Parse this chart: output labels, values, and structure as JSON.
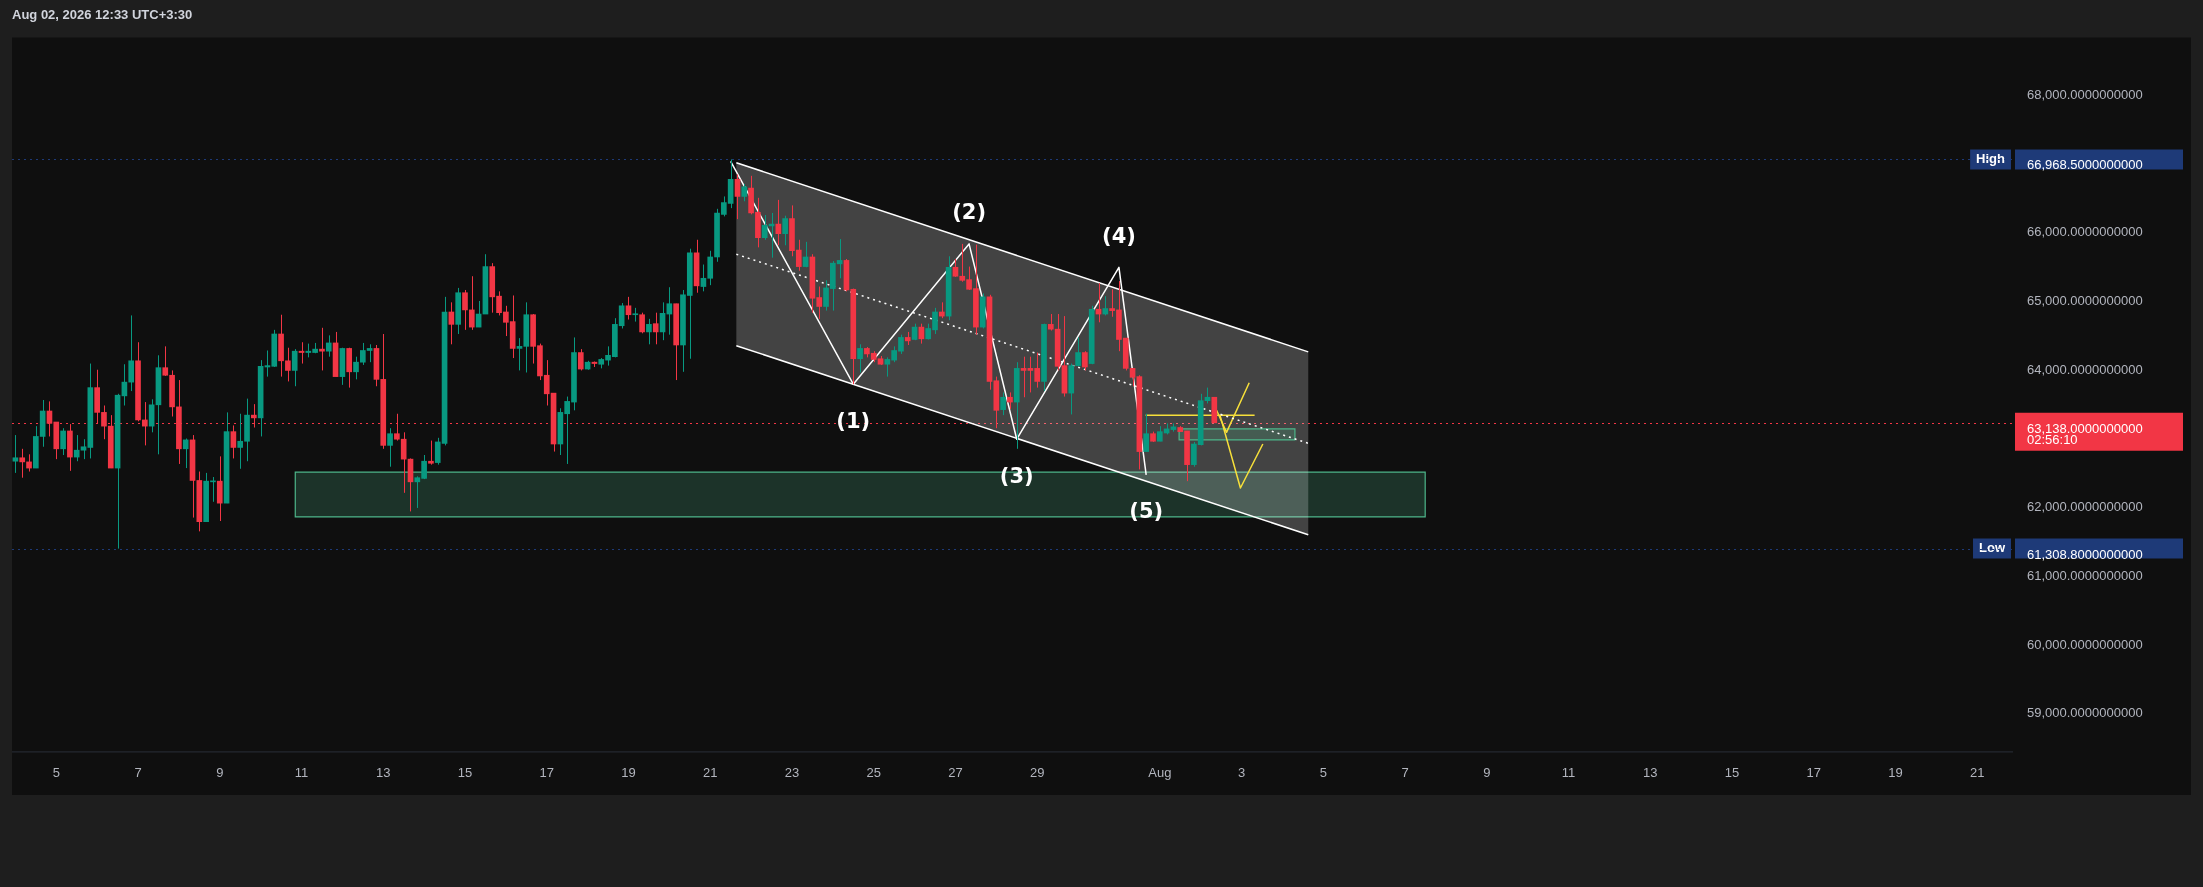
{
  "chart_data": {
    "type": "candlestick",
    "title": "Aug 02, 2026 12:33 UTC+3:30",
    "x": [
      "2026-07-04T00:00",
      "2026-07-04T04:00",
      "2026-07-04T08:00",
      "2026-07-04T12:00",
      "2026-07-04T16:00",
      "2026-07-04T20:00",
      "2026-07-05T00:00",
      "2026-07-05T04:00",
      "2026-07-05T08:00",
      "2026-07-05T12:00",
      "2026-07-05T16:00",
      "2026-07-05T20:00",
      "2026-07-06T00:00",
      "2026-07-06T04:00",
      "2026-07-06T08:00",
      "2026-07-06T12:00",
      "2026-07-06T16:00",
      "2026-07-06T20:00",
      "2026-07-07T00:00",
      "2026-07-07T04:00",
      "2026-07-07T08:00",
      "2026-07-07T12:00",
      "2026-07-07T16:00",
      "2026-07-07T20:00",
      "2026-07-08T00:00",
      "2026-07-08T04:00",
      "2026-07-08T08:00",
      "2026-07-08T12:00",
      "2026-07-08T16:00",
      "2026-07-08T20:00",
      "2026-07-09T00:00",
      "2026-07-09T04:00",
      "2026-07-09T08:00",
      "2026-07-09T12:00",
      "2026-07-09T16:00",
      "2026-07-09T20:00",
      "2026-07-10T00:00",
      "2026-07-10T04:00",
      "2026-07-10T08:00",
      "2026-07-10T12:00",
      "2026-07-10T16:00",
      "2026-07-10T20:00",
      "2026-07-11T00:00",
      "2026-07-11T04:00",
      "2026-07-11T08:00",
      "2026-07-11T12:00",
      "2026-07-11T16:00",
      "2026-07-11T20:00",
      "2026-07-12T00:00",
      "2026-07-12T04:00",
      "2026-07-12T08:00",
      "2026-07-12T12:00",
      "2026-07-12T16:00",
      "2026-07-12T20:00",
      "2026-07-13T00:00",
      "2026-07-13T04:00",
      "2026-07-13T08:00",
      "2026-07-13T12:00",
      "2026-07-13T16:00",
      "2026-07-13T20:00",
      "2026-07-14T00:00",
      "2026-07-14T04:00",
      "2026-07-14T08:00",
      "2026-07-14T12:00",
      "2026-07-14T16:00",
      "2026-07-14T20:00",
      "2026-07-15T00:00",
      "2026-07-15T04:00",
      "2026-07-15T08:00",
      "2026-07-15T12:00",
      "2026-07-15T16:00",
      "2026-07-15T20:00",
      "2026-07-16T00:00",
      "2026-07-16T04:00",
      "2026-07-16T08:00",
      "2026-07-16T12:00",
      "2026-07-16T16:00",
      "2026-07-16T20:00",
      "2026-07-17T00:00",
      "2026-07-17T04:00",
      "2026-07-17T08:00",
      "2026-07-17T12:00",
      "2026-07-17T16:00",
      "2026-07-17T20:00",
      "2026-07-18T00:00",
      "2026-07-18T04:00",
      "2026-07-18T08:00",
      "2026-07-18T12:00",
      "2026-07-18T16:00",
      "2026-07-18T20:00",
      "2026-07-19T00:00",
      "2026-07-19T04:00",
      "2026-07-19T08:00",
      "2026-07-19T12:00",
      "2026-07-19T16:00",
      "2026-07-19T20:00",
      "2026-07-20T00:00",
      "2026-07-20T04:00",
      "2026-07-20T08:00",
      "2026-07-20T12:00",
      "2026-07-20T16:00",
      "2026-07-20T20:00",
      "2026-07-21T00:00",
      "2026-07-21T04:00",
      "2026-07-21T08:00",
      "2026-07-21T12:00",
      "2026-07-21T16:00",
      "2026-07-21T20:00",
      "2026-07-22T00:00",
      "2026-07-22T04:00",
      "2026-07-22T08:00",
      "2026-07-22T12:00",
      "2026-07-22T16:00",
      "2026-07-22T20:00",
      "2026-07-23T00:00",
      "2026-07-23T04:00",
      "2026-07-23T08:00",
      "2026-07-23T12:00",
      "2026-07-23T16:00",
      "2026-07-23T20:00",
      "2026-07-24T00:00",
      "2026-07-24T04:00",
      "2026-07-24T08:00",
      "2026-07-24T12:00",
      "2026-07-24T16:00",
      "2026-07-24T20:00",
      "2026-07-25T00:00",
      "2026-07-25T04:00",
      "2026-07-25T08:00",
      "2026-07-25T12:00",
      "2026-07-25T16:00",
      "2026-07-25T20:00",
      "2026-07-26T00:00",
      "2026-07-26T04:00",
      "2026-07-26T08:00",
      "2026-07-26T12:00",
      "2026-07-26T16:00",
      "2026-07-26T20:00",
      "2026-07-27T00:00",
      "2026-07-27T04:00",
      "2026-07-27T08:00",
      "2026-07-27T12:00",
      "2026-07-27T16:00",
      "2026-07-27T20:00",
      "2026-07-28T00:00",
      "2026-07-28T04:00",
      "2026-07-28T08:00",
      "2026-07-28T12:00",
      "2026-07-28T16:00",
      "2026-07-28T20:00",
      "2026-07-29T00:00",
      "2026-07-29T04:00",
      "2026-07-29T08:00",
      "2026-07-29T12:00",
      "2026-07-29T16:00",
      "2026-07-29T20:00",
      "2026-07-30T00:00",
      "2026-07-30T04:00",
      "2026-07-30T08:00",
      "2026-07-30T12:00",
      "2026-07-30T16:00",
      "2026-07-30T20:00",
      "2026-07-31T00:00",
      "2026-07-31T04:00",
      "2026-07-31T08:00",
      "2026-07-31T12:00",
      "2026-07-31T16:00",
      "2026-07-31T20:00",
      "2026-08-01T00:00",
      "2026-08-01T04:00",
      "2026-08-01T08:00",
      "2026-08-01T12:00",
      "2026-08-01T16:00",
      "2026-08-01T20:00",
      "2026-08-02T00:00",
      "2026-08-02T04:00",
      "2026-08-02T08:00"
    ],
    "ohlc": [
      [
        62580,
        62960,
        62410,
        62630
      ],
      [
        62630,
        62760,
        62340,
        62570
      ],
      [
        62570,
        62680,
        62430,
        62480
      ],
      [
        62480,
        63090,
        62480,
        62940
      ],
      [
        62940,
        63470,
        62790,
        63310
      ],
      [
        63310,
        63450,
        62940,
        63130
      ],
      [
        63150,
        63150,
        62610,
        62760
      ],
      [
        62760,
        63060,
        62670,
        63020
      ],
      [
        63020,
        63120,
        62440,
        62640
      ],
      [
        62640,
        62960,
        62580,
        62740
      ],
      [
        62740,
        62900,
        62610,
        62790
      ],
      [
        62780,
        64000,
        62620,
        63650
      ],
      [
        63650,
        63910,
        63130,
        63290
      ],
      [
        63290,
        63390,
        62900,
        63090
      ],
      [
        63090,
        63250,
        62480,
        62480
      ],
      [
        62480,
        63560,
        61308.8,
        63540
      ],
      [
        63530,
        63990,
        63390,
        63730
      ],
      [
        63730,
        64700,
        63600,
        64040
      ],
      [
        64040,
        64310,
        63160,
        63180
      ],
      [
        63180,
        63440,
        62810,
        63090
      ],
      [
        63090,
        63480,
        63000,
        63400
      ],
      [
        63400,
        64120,
        62680,
        63940
      ],
      [
        63940,
        64250,
        63820,
        63830
      ],
      [
        63830,
        63900,
        63230,
        63370
      ],
      [
        63370,
        63760,
        62540,
        62760
      ],
      [
        62760,
        62910,
        62480,
        62890
      ],
      [
        62890,
        62960,
        61760,
        62300
      ],
      [
        62300,
        62430,
        61560,
        61700
      ],
      [
        61700,
        62410,
        61700,
        62290
      ],
      [
        62280,
        62350,
        61990,
        62290
      ],
      [
        62290,
        62650,
        61710,
        61970
      ],
      [
        61970,
        63290,
        61970,
        63010
      ],
      [
        63010,
        63100,
        62620,
        62780
      ],
      [
        62780,
        63270,
        62470,
        62870
      ],
      [
        62870,
        63490,
        62580,
        63250
      ],
      [
        63250,
        63410,
        63070,
        63210
      ],
      [
        63210,
        64050,
        62940,
        63960
      ],
      [
        63950,
        64190,
        63810,
        63970
      ],
      [
        63960,
        64490,
        63950,
        64430
      ],
      [
        64430,
        64710,
        63810,
        64040
      ],
      [
        64040,
        64230,
        63740,
        63900
      ],
      [
        63900,
        64210,
        63670,
        64180
      ],
      [
        64180,
        64310,
        64000,
        64160
      ],
      [
        64160,
        64290,
        64090,
        64180
      ],
      [
        64160,
        64300,
        64150,
        64210
      ],
      [
        64210,
        64520,
        63900,
        64180
      ],
      [
        64180,
        64410,
        64100,
        64300
      ],
      [
        64300,
        64460,
        63810,
        63810
      ],
      [
        63810,
        64230,
        63690,
        64220
      ],
      [
        64220,
        64230,
        63650,
        63880
      ],
      [
        63880,
        64100,
        63770,
        64020
      ],
      [
        64020,
        64300,
        63980,
        64190
      ],
      [
        64190,
        64280,
        64020,
        64220
      ],
      [
        64220,
        64270,
        63670,
        63770
      ],
      [
        63770,
        64430,
        62760,
        62810
      ],
      [
        62810,
        63060,
        62500,
        62980
      ],
      [
        62980,
        63270,
        62880,
        62900
      ],
      [
        62900,
        63000,
        62120,
        62610
      ],
      [
        62610,
        62620,
        61850,
        62280
      ],
      [
        62280,
        62360,
        61900,
        62340
      ],
      [
        62330,
        62670,
        62320,
        62580
      ],
      [
        62580,
        62880,
        62530,
        62550
      ],
      [
        62560,
        62920,
        62530,
        62860
      ],
      [
        62840,
        64970,
        62810,
        64750
      ],
      [
        64750,
        64890,
        64280,
        64570
      ],
      [
        64570,
        65100,
        64430,
        65030
      ],
      [
        65030,
        65070,
        64490,
        64780
      ],
      [
        64780,
        65270,
        64490,
        64530
      ],
      [
        64530,
        64910,
        64530,
        64720
      ],
      [
        64720,
        65590,
        64720,
        65410
      ],
      [
        65410,
        65460,
        64740,
        64970
      ],
      [
        64980,
        65050,
        64700,
        64740
      ],
      [
        64750,
        64840,
        64400,
        64600
      ],
      [
        64610,
        64990,
        64080,
        64220
      ],
      [
        64220,
        64370,
        63900,
        64250
      ],
      [
        64250,
        64890,
        63870,
        64710
      ],
      [
        64710,
        64720,
        64000,
        64250
      ],
      [
        64260,
        64290,
        63760,
        63820
      ],
      [
        63830,
        64050,
        63390,
        63560
      ],
      [
        63570,
        63570,
        62720,
        62830
      ],
      [
        62830,
        63350,
        62670,
        63290
      ],
      [
        63270,
        63520,
        62540,
        63450
      ],
      [
        63440,
        64380,
        63320,
        64160
      ],
      [
        64160,
        64210,
        63900,
        63920
      ],
      [
        63920,
        64040,
        63910,
        64020
      ],
      [
        64020,
        64030,
        63950,
        64000
      ],
      [
        63990,
        64080,
        63930,
        64060
      ],
      [
        64050,
        64250,
        63970,
        64120
      ],
      [
        64100,
        64660,
        64090,
        64570
      ],
      [
        64550,
        64880,
        64510,
        64840
      ],
      [
        64840,
        64970,
        64640,
        64710
      ],
      [
        64710,
        64810,
        64610,
        64720
      ],
      [
        64710,
        64740,
        64440,
        64460
      ],
      [
        64460,
        64650,
        64280,
        64570
      ],
      [
        64580,
        64740,
        64280,
        64460
      ],
      [
        64460,
        64890,
        64340,
        64730
      ],
      [
        64720,
        65110,
        64420,
        64870
      ],
      [
        64870,
        64870,
        63760,
        64270
      ],
      [
        64270,
        65070,
        63880,
        65000
      ],
      [
        64990,
        65670,
        64070,
        65610
      ],
      [
        65610,
        65800,
        65030,
        65130
      ],
      [
        65120,
        65440,
        65050,
        65240
      ],
      [
        65240,
        65640,
        65140,
        65550
      ],
      [
        65550,
        66250,
        65480,
        66190
      ],
      [
        66170,
        66430,
        66140,
        66340
      ],
      [
        66330,
        66968.5,
        66260,
        66680
      ],
      [
        66680,
        66750,
        66100,
        66430
      ],
      [
        66430,
        66610,
        66360,
        66570
      ],
      [
        66550,
        66730,
        66170,
        66190
      ],
      [
        66200,
        66410,
        65690,
        65830
      ],
      [
        65830,
        66160,
        65800,
        66010
      ],
      [
        66000,
        66190,
        65540,
        66030
      ],
      [
        66030,
        66380,
        65720,
        65890
      ],
      [
        65890,
        66150,
        65720,
        66110
      ],
      [
        66110,
        66300,
        65560,
        65640
      ],
      [
        65650,
        65800,
        65350,
        65410
      ],
      [
        65410,
        65770,
        65400,
        65550
      ],
      [
        65550,
        65590,
        64740,
        64950
      ],
      [
        64960,
        65120,
        64650,
        64830
      ],
      [
        64830,
        65210,
        64770,
        65100
      ],
      [
        65090,
        65490,
        64770,
        65460
      ],
      [
        65450,
        65810,
        65240,
        65500
      ],
      [
        65500,
        65520,
        65050,
        65070
      ],
      [
        65080,
        65090,
        63700,
        64070
      ],
      [
        64070,
        64280,
        63870,
        64220
      ],
      [
        64220,
        64240,
        64090,
        64140
      ],
      [
        64150,
        64180,
        64020,
        64060
      ],
      [
        64070,
        64110,
        63980,
        63990
      ],
      [
        63990,
        64090,
        63810,
        64060
      ],
      [
        64050,
        64250,
        64020,
        64190
      ],
      [
        64180,
        64420,
        64140,
        64380
      ],
      [
        64380,
        64460,
        64270,
        64330
      ],
      [
        64350,
        64580,
        64340,
        64530
      ],
      [
        64530,
        64580,
        64290,
        64360
      ],
      [
        64360,
        64580,
        64350,
        64510
      ],
      [
        64490,
        64810,
        64430,
        64750
      ],
      [
        64750,
        64890,
        64660,
        64690
      ],
      [
        64690,
        65560,
        64630,
        65400
      ],
      [
        65400,
        65520,
        65260,
        65270
      ],
      [
        65270,
        65740,
        65190,
        65210
      ],
      [
        65220,
        65410,
        65070,
        65080
      ],
      [
        65090,
        65730,
        64420,
        64530
      ],
      [
        64530,
        65020,
        64510,
        64970
      ],
      [
        64970,
        65000,
        63620,
        63740
      ],
      [
        63750,
        63810,
        63060,
        63320
      ],
      [
        63330,
        63580,
        63250,
        63510
      ],
      [
        63510,
        63580,
        63340,
        63440
      ],
      [
        63440,
        64020,
        62760,
        63930
      ],
      [
        63930,
        64100,
        63510,
        63900
      ],
      [
        63930,
        64100,
        63580,
        63900
      ],
      [
        63930,
        64160,
        63650,
        63740
      ],
      [
        63740,
        64580,
        63600,
        64570
      ],
      [
        64570,
        64720,
        64480,
        64500
      ],
      [
        64500,
        64720,
        63900,
        63960
      ],
      [
        63970,
        64690,
        63520,
        63570
      ],
      [
        63570,
        64000,
        63260,
        63970
      ],
      [
        63970,
        64380,
        63960,
        64160
      ],
      [
        64160,
        64180,
        63900,
        63950
      ],
      [
        64000,
        64840,
        63990,
        64790
      ],
      [
        64790,
        65170,
        64600,
        64720
      ],
      [
        64720,
        64980,
        64700,
        64800
      ],
      [
        64800,
        65080,
        64680,
        64770
      ],
      [
        64780,
        65200,
        64180,
        64350
      ],
      [
        64370,
        64370,
        63900,
        63930
      ],
      [
        63930,
        63930,
        63670,
        63800
      ],
      [
        63810,
        63830,
        62460,
        62720
      ],
      [
        62720,
        63270,
        62720,
        62980
      ],
      [
        62980,
        63010,
        62860,
        62870
      ],
      [
        62870,
        63090,
        62870,
        63010
      ],
      [
        62990,
        63130,
        62970,
        63050
      ],
      [
        63040,
        63130,
        63010,
        63080
      ],
      [
        63070,
        63090,
        63010,
        63010
      ],
      [
        63020,
        63020,
        62290,
        62530
      ],
      [
        62530,
        62860,
        62500,
        62830
      ],
      [
        62820,
        63560,
        62810,
        63460
      ],
      [
        63460,
        63650,
        63420,
        63510
      ],
      [
        63510,
        63510,
        63138,
        63138
      ]
    ],
    "colors": [
      "#089981",
      "#f23645",
      "#f23645",
      "#089981",
      "#089981",
      "#f23645",
      "#f23645",
      "#089981",
      "#f23645",
      "#089981",
      "#089981",
      "#089981",
      "#f23645",
      "#f23645",
      "#f23645",
      "#089981",
      "#089981",
      "#089981",
      "#f23645",
      "#f23645",
      "#089981",
      "#089981",
      "#f23645",
      "#f23645",
      "#f23645",
      "#089981",
      "#f23645",
      "#f23645",
      "#089981",
      "#089981",
      "#f23645",
      "#089981",
      "#f23645",
      "#089981",
      "#089981",
      "#f23645",
      "#089981",
      "#089981",
      "#089981",
      "#f23645",
      "#f23645",
      "#089981",
      "#f23645",
      "#089981",
      "#089981",
      "#f23645",
      "#089981",
      "#f23645",
      "#089981",
      "#f23645",
      "#089981",
      "#089981",
      "#089981",
      "#f23645",
      "#f23645",
      "#089981",
      "#f23645",
      "#f23645",
      "#f23645",
      "#089981",
      "#089981",
      "#f23645",
      "#089981",
      "#089981",
      "#f23645",
      "#089981",
      "#f23645",
      "#f23645",
      "#089981",
      "#089981",
      "#f23645",
      "#f23645",
      "#f23645",
      "#f23645",
      "#089981",
      "#089981",
      "#f23645",
      "#f23645",
      "#f23645",
      "#f23645",
      "#089981",
      "#089981",
      "#089981",
      "#f23645",
      "#089981",
      "#f23645",
      "#089981",
      "#089981",
      "#089981",
      "#089981",
      "#f23645",
      "#089981",
      "#f23645",
      "#089981",
      "#f23645",
      "#089981",
      "#089981",
      "#f23645",
      "#089981",
      "#089981",
      "#f23645",
      "#089981",
      "#089981",
      "#089981",
      "#089981",
      "#089981",
      "#f23645",
      "#089981",
      "#f23645",
      "#f23645",
      "#089981",
      "#089981",
      "#f23645",
      "#089981",
      "#f23645",
      "#f23645",
      "#089981",
      "#f23645",
      "#f23645",
      "#089981",
      "#089981",
      "#089981",
      "#f23645",
      "#f23645",
      "#089981",
      "#f23645",
      "#f23645",
      "#f23645",
      "#089981",
      "#089981",
      "#089981",
      "#f23645",
      "#089981",
      "#f23645",
      "#089981",
      "#089981",
      "#f23645",
      "#089981",
      "#f23645",
      "#f23645",
      "#f23645",
      "#f23645",
      "#089981",
      "#f23645",
      "#f23645",
      "#089981",
      "#f23645",
      "#089981",
      "#f23645",
      "#f23645",
      "#f23645",
      "#089981",
      "#f23645",
      "#f23645",
      "#f23645",
      "#089981",
      "#089981",
      "#f23645",
      "#089981",
      "#f23645",
      "#089981",
      "#f23645",
      "#f23645",
      "#f23645",
      "#f23645",
      "#f23645",
      "#089981",
      "#f23645",
      "#089981",
      "#089981",
      "#089981",
      "#f23645",
      "#f23645",
      "#089981",
      "#089981",
      "#089981",
      "#f23645"
    ],
    "series": [
      {
        "type": "line",
        "color": "#4db68a",
        "x": [
          "2026-07-10T20:20",
          "2026-08-07T11:50"
        ],
        "values": [
          null,
          null
        ],
        "lower": [
          61770,
          61770
        ],
        "upper": [
          62420,
          62420
        ]
      },
      {
        "type": "line",
        "color": "#ffffff",
        "line_style": "dotted",
        "x": [
          "2026-07-21T15:20",
          "2026-08-04T15:10"
        ],
        "values": [
          65590,
          62840
        ],
        "lower": [
          64260,
          61510
        ],
        "upper": [
          66920,
          64170
        ]
      },
      {
        "type": "line",
        "color": "#ffffff",
        "x": [
          "2026-07-21T15:20",
          "2026-08-04T15:10"
        ],
        "values": [
          66920,
          64170
        ]
      },
      {
        "type": "line",
        "color": "#ffffff",
        "x": [
          "2026-07-21T15:20",
          "2026-08-04T15:10"
        ],
        "values": [
          64260,
          61510
        ]
      },
      {
        "type": "line",
        "color": "#4db68a",
        "x": [
          "2026-08-01T11:20",
          "2026-08-04T07:20"
        ],
        "values": [
          null,
          null
        ],
        "lower": [
          62890,
          62890
        ],
        "upper": [
          63050,
          63050
        ]
      },
      {
        "type": "line",
        "color": "#ffffff",
        "x": [
          "2026-07-21T12:00",
          "2026-07-24T12:00",
          "2026-07-27T08:00",
          "2026-07-28T12:00",
          "2026-07-31T00:00",
          "2026-07-31T16:00"
        ],
        "values": [
          66940,
          63700,
          65740,
          62900,
          65400,
          62380
        ]
      },
      {
        "type": "line",
        "color": "#f7e03a",
        "x": [
          "2026-07-31T15:40",
          "2026-08-03T07:40"
        ],
        "values": [
          63250,
          63250
        ]
      },
      {
        "type": "line",
        "color": "#f7e03a",
        "x": [
          "2026-08-02T09:20",
          "2026-08-02T15:10",
          "2026-08-03T04:30"
        ],
        "values": [
          63320,
          63000,
          63720
        ]
      },
      {
        "type": "line",
        "color": "#f7e03a",
        "x": [
          "2026-08-02T11:20",
          "2026-08-02T23:20",
          "2026-08-03T12:30"
        ],
        "values": [
          63250,
          62190,
          62830
        ]
      }
    ],
    "annotations": [
      {
        "text": "(1)",
        "x": "2026-07-24T12:00",
        "y": 63700
      },
      {
        "text": "(2)",
        "x": "2026-07-27T08:00",
        "y": 65740
      },
      {
        "text": "(3)",
        "x": "2026-07-28T12:00",
        "y": 62900
      },
      {
        "text": "(4)",
        "x": "2026-07-31T00:00",
        "y": 65400
      },
      {
        "text": "(5)",
        "x": "2026-07-31T16:00",
        "y": 62380
      },
      "02:56:10"
    ],
    "ref_lines": [
      {
        "axis": "y",
        "value": 66968.5,
        "label": "High",
        "color": "#1e3a78",
        "line_style": "dotted"
      },
      {
        "axis": "y",
        "value": 61308.8,
        "label": "Low",
        "color": "#1e3a78",
        "line_style": "dotted"
      },
      {
        "axis": "y",
        "value": 63138,
        "color": "#f23645",
        "line_style": "dotted"
      }
    ],
    "marker": "none",
    "xlim": [
      "2026-07-03T22:00",
      "2026-08-21T21:00"
    ],
    "xticks": [
      {
        "value": "2026-07-05",
        "label": "5"
      },
      {
        "value": "2026-07-07",
        "label": "7"
      },
      {
        "value": "2026-07-09",
        "label": "9"
      },
      {
        "value": "2026-07-11",
        "label": "11"
      },
      {
        "value": "2026-07-13",
        "label": "13"
      },
      {
        "value": "2026-07-15",
        "label": "15"
      },
      {
        "value": "2026-07-17",
        "label": "17"
      },
      {
        "value": "2026-07-19",
        "label": "19"
      },
      {
        "value": "2026-07-21",
        "label": "21"
      },
      {
        "value": "2026-07-23",
        "label": "23"
      },
      {
        "value": "2026-07-25",
        "label": "25"
      },
      {
        "value": "2026-07-27",
        "label": "27"
      },
      {
        "value": "2026-07-29",
        "label": "29"
      },
      {
        "value": "2026-08-01",
        "label": "Aug"
      },
      {
        "value": "2026-08-03",
        "label": "3"
      },
      {
        "value": "2026-08-05",
        "label": "5"
      },
      {
        "value": "2026-08-07",
        "label": "7"
      },
      {
        "value": "2026-08-09",
        "label": "9"
      },
      {
        "value": "2026-08-11",
        "label": "11"
      },
      {
        "value": "2026-08-13",
        "label": "13"
      },
      {
        "value": "2026-08-15",
        "label": "15"
      },
      {
        "value": "2026-08-17",
        "label": "17"
      },
      {
        "value": "2026-08-19",
        "label": "19"
      },
      {
        "value": "2026-08-21",
        "label": "21"
      }
    ],
    "ylim": [
      58360,
      68740
    ],
    "yticks": [
      {
        "value": 68000,
        "label": "68,000.0000000000"
      },
      {
        "value": 66968.5,
        "label": "66,968.5000000000"
      },
      {
        "value": 66000,
        "label": "66,000.0000000000"
      },
      {
        "value": 65000,
        "label": "65,000.0000000000"
      },
      {
        "value": 64000,
        "label": "64,000.0000000000"
      },
      {
        "value": 63138,
        "label": "63,138.0000000000"
      },
      {
        "value": 62000,
        "label": "62,000.0000000000"
      },
      {
        "value": 61308.8,
        "label": "61,308.8000000000"
      },
      {
        "value": 61000,
        "label": "61,000.0000000000"
      },
      {
        "value": 60000,
        "label": "60,000.0000000000"
      },
      {
        "value": 59000,
        "label": "59,000.0000000000"
      }
    ]
  }
}
